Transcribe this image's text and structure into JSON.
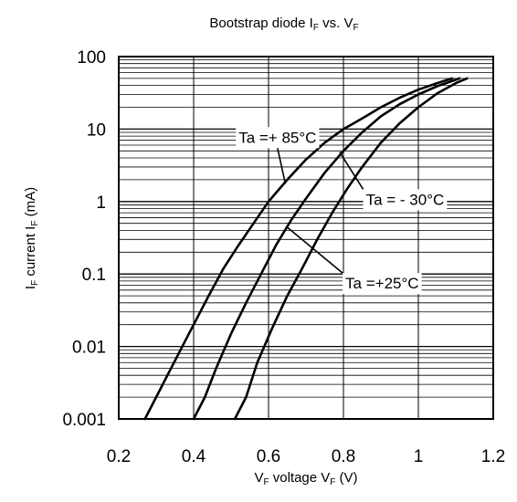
{
  "chart_data": {
    "type": "line",
    "title": {
      "main": "Bootstrap diode I",
      "sub1": "F",
      "mid": " vs. V",
      "sub2": "F"
    },
    "xlabel": {
      "a": "V",
      "a_sub": "F",
      "b": " voltage V",
      "b_sub": "F",
      "c": " (V)"
    },
    "ylabel": {
      "a": "I",
      "a_sub": "F",
      "b": " current I",
      "b_sub": "F",
      "c": " (mA)"
    },
    "x_range": [
      0.2,
      1.2
    ],
    "y_range": [
      0.001,
      100
    ],
    "y_scale": "log",
    "grid": true,
    "x_ticks": [
      {
        "value": 0.2,
        "label": "0.2"
      },
      {
        "value": 0.4,
        "label": "0.4"
      },
      {
        "value": 0.6,
        "label": "0.6"
      },
      {
        "value": 0.8,
        "label": "0.8"
      },
      {
        "value": 1.0,
        "label": "1"
      },
      {
        "value": 1.2,
        "label": "1.2"
      }
    ],
    "y_ticks": [
      {
        "value": 0.001,
        "label": "0.001"
      },
      {
        "value": 0.01,
        "label": "0.01"
      },
      {
        "value": 0.1,
        "label": "0.1"
      },
      {
        "value": 1,
        "label": "1"
      },
      {
        "value": 10,
        "label": "10"
      },
      {
        "value": 100,
        "label": "100"
      }
    ],
    "series": [
      {
        "name": "Ta =+ 85°C",
        "x": [
          0.27,
          0.3,
          0.33,
          0.36,
          0.4,
          0.44,
          0.48,
          0.52,
          0.56,
          0.6,
          0.65,
          0.7,
          0.75,
          0.8,
          0.85,
          0.9,
          0.95,
          1.0,
          1.05,
          1.09
        ],
        "y": [
          0.001,
          0.002,
          0.004,
          0.008,
          0.02,
          0.05,
          0.12,
          0.25,
          0.5,
          1,
          2,
          3.8,
          6.5,
          10,
          14,
          20,
          27,
          35,
          43,
          50
        ]
      },
      {
        "name": "Ta =+25°C",
        "x": [
          0.4,
          0.43,
          0.46,
          0.5,
          0.54,
          0.58,
          0.62,
          0.66,
          0.7,
          0.75,
          0.8,
          0.85,
          0.9,
          0.95,
          1.0,
          1.05,
          1.11
        ],
        "y": [
          0.001,
          0.002,
          0.005,
          0.015,
          0.04,
          0.1,
          0.25,
          0.55,
          1.1,
          2.5,
          5,
          9,
          15,
          22,
          30,
          39,
          50
        ]
      },
      {
        "name": "Ta = - 30°C",
        "x": [
          0.51,
          0.54,
          0.57,
          0.61,
          0.65,
          0.69,
          0.73,
          0.77,
          0.81,
          0.85,
          0.9,
          0.95,
          1.0,
          1.05,
          1.1,
          1.13
        ],
        "y": [
          0.001,
          0.002,
          0.006,
          0.018,
          0.05,
          0.12,
          0.3,
          0.7,
          1.5,
          3,
          6.5,
          12,
          20,
          31,
          43,
          50
        ]
      }
    ],
    "annotations": [
      {
        "text": "Ta =+ 85°C",
        "series": 0,
        "label_x": 0.52,
        "label_y": 6.5,
        "arrow_x": 0.645,
        "arrow_y": 1.75
      },
      {
        "text": "Ta = - 30°C",
        "series": 2,
        "label_x": 0.86,
        "label_y": 0.9,
        "arrow_x": 0.79,
        "arrow_y": 4.8
      },
      {
        "text": "Ta =+25°C",
        "series": 1,
        "label_x": 0.805,
        "label_y": 0.063,
        "arrow_x": 0.648,
        "arrow_y": 0.45
      }
    ]
  }
}
